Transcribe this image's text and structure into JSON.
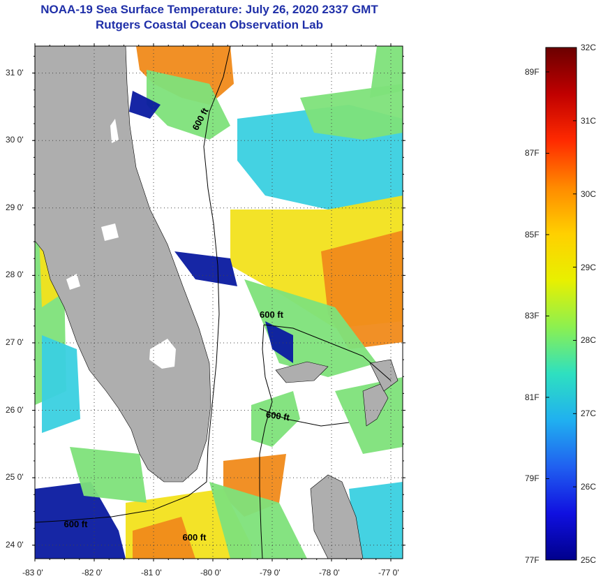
{
  "title": {
    "line1": "NOAA-19 Sea Surface Temperature:  July 26, 2020 2337 GMT",
    "line2": "Rutgers Coastal Ocean Observation Lab"
  },
  "map": {
    "lat_ticks": [
      "31 0'",
      "30 0'",
      "29 0'",
      "28 0'",
      "27 0'",
      "26 0'",
      "25 0'",
      "24 0'"
    ],
    "lon_ticks": [
      "-83 0'",
      "-82 0'",
      "-81 0'",
      "-80 0'",
      "-79 0'",
      "-78 0'",
      "-77 0'"
    ],
    "lat_values": [
      31,
      30,
      29,
      28,
      27,
      26,
      25,
      24
    ],
    "lon_values": [
      -83,
      -82,
      -81,
      -80,
      -79,
      -78,
      -77
    ],
    "lat_range": [
      23.8,
      31.4
    ],
    "lon_range": [
      -83,
      -76.8
    ],
    "contour_labels": [
      {
        "text": "600 ft",
        "lon": -80.2,
        "lat": 30.3,
        "rotate": -62
      },
      {
        "text": "600 ft",
        "lon": -79.0,
        "lat": 27.4,
        "rotate": 0
      },
      {
        "text": "600 ft",
        "lon": -78.9,
        "lat": 25.9,
        "rotate": 8
      },
      {
        "text": "600 ft",
        "lon": -82.3,
        "lat": 24.3,
        "rotate": 0
      },
      {
        "text": "600 ft",
        "lon": -80.3,
        "lat": 24.1,
        "rotate": 0
      }
    ],
    "colors": {
      "land": "#aeaeae",
      "cloud": "#ffffff",
      "cold": "#0a1aa0",
      "cool": "#3ad0e0",
      "mid": "#7ee27a",
      "warm": "#f2e21c",
      "hot": "#f08a1a"
    }
  },
  "colorbar": {
    "celsius": [
      "32C",
      "31C",
      "30C",
      "29C",
      "28C",
      "27C",
      "26C",
      "25C"
    ],
    "fahrenheit": [
      "89F",
      "87F",
      "85F",
      "83F",
      "81F",
      "79F",
      "77F"
    ],
    "c_range": [
      25,
      32
    ],
    "f_values": [
      89,
      87,
      85,
      83,
      81,
      79,
      77
    ],
    "gradient": [
      "#6b0000",
      "#c00000",
      "#ff2a00",
      "#ff8a00",
      "#ffd000",
      "#e8f000",
      "#8cf050",
      "#2ee0c0",
      "#20b0f0",
      "#2060f0",
      "#1010e0",
      "#00008c"
    ]
  }
}
